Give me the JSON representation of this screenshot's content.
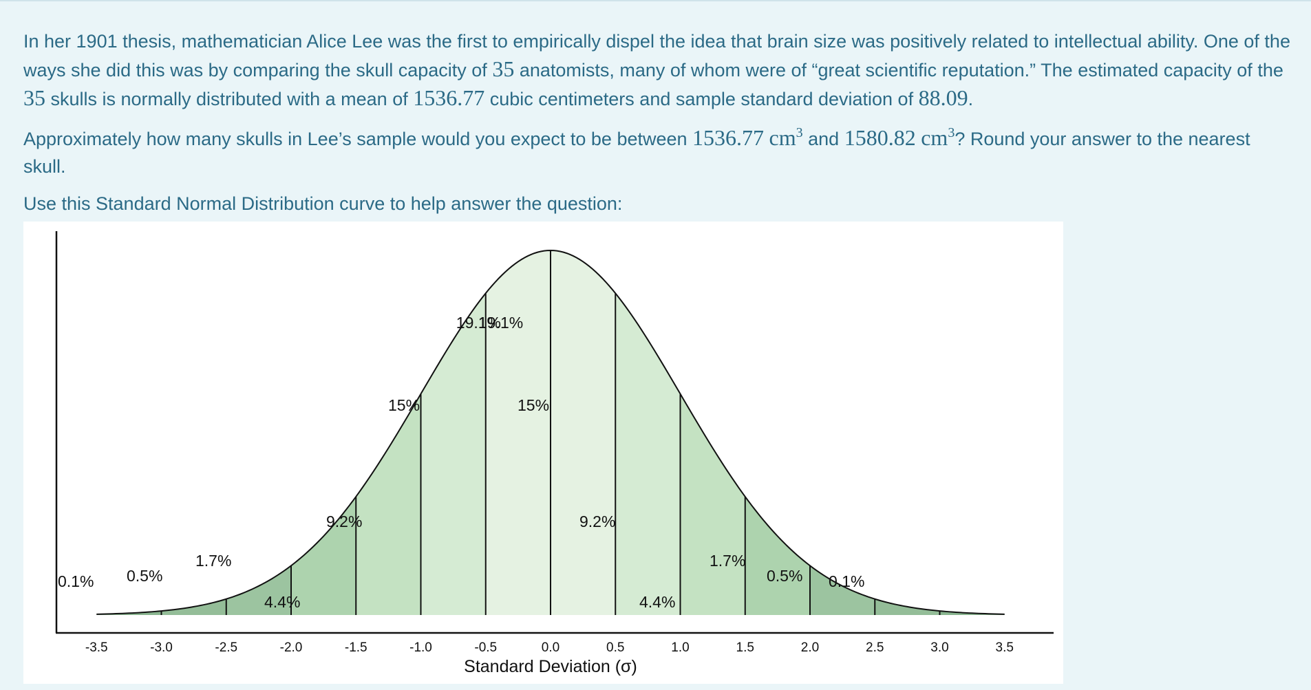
{
  "question": {
    "p1_a": "In her 1901 thesis, mathematician Alice Lee was the first to empirically dispel the idea that brain size was positively related to intellectual ability. One of the ways she did this was by comparing the skull capacity of ",
    "n1": "35",
    "p1_b": " anatomists, many of whom were of “great scientific reputation.” The estimated capacity of the ",
    "n2": "35",
    "p1_c": " skulls is normally distributed with a mean of ",
    "mean": "1536.77",
    "p1_d": " cubic centimeters and sample standard deviation of ",
    "sd": "88.09",
    "p1_e": ".",
    "p2_a": "Approximately how many skulls in Lee’s sample would you expect to be between ",
    "low": "1536.77",
    "unit": "cm",
    "exp": "3",
    "p2_b": " and ",
    "high": "1580.82",
    "p2_c": "? Round your answer to the nearest skull.",
    "p3": "Use this Standard Normal Distribution curve to help answer the question:"
  },
  "chart_data": {
    "type": "area",
    "title": "",
    "xlabel": "Standard Deviation (σ)",
    "ylabel": "",
    "xlim": [
      -3.5,
      3.5
    ],
    "ticks": [
      "-3.5",
      "-3.0",
      "-2.5",
      "-2.0",
      "-1.5",
      "-1.0",
      "-0.5",
      "0.0",
      "0.5",
      "1.0",
      "1.5",
      "2.0",
      "2.5",
      "3.0",
      "3.5"
    ],
    "boundaries": [
      -3.0,
      -2.5,
      -2.0,
      -1.5,
      -1.0,
      -0.5,
      0.0,
      0.5,
      1.0,
      1.5,
      2.0,
      2.5,
      3.0
    ],
    "regions": [
      {
        "from": -3.5,
        "to": -3.0,
        "label": "0.1%",
        "color": "#89b58f"
      },
      {
        "from": -3.0,
        "to": -2.5,
        "label": "0.5%",
        "color": "#94bd98"
      },
      {
        "from": -2.5,
        "to": -2.0,
        "label": "1.7%",
        "color": "#9cc4a0"
      },
      {
        "from": -2.0,
        "to": -1.5,
        "label": "4.4%",
        "color": "#add3ae"
      },
      {
        "from": -1.5,
        "to": -1.0,
        "label": "9.2%",
        "color": "#c4e2c2"
      },
      {
        "from": -1.0,
        "to": -0.5,
        "label": "15%",
        "color": "#d5ebd3"
      },
      {
        "from": -0.5,
        "to": 0.0,
        "label": "19.1%",
        "color": "#e5f2e2"
      },
      {
        "from": 0.0,
        "to": 0.5,
        "label": "19.1%",
        "color": "#e5f2e2"
      },
      {
        "from": 0.5,
        "to": 1.0,
        "label": "15%",
        "color": "#d5ebd3"
      },
      {
        "from": 1.0,
        "to": 1.5,
        "label": "9.2%",
        "color": "#c4e2c2"
      },
      {
        "from": 1.5,
        "to": 2.0,
        "label": "4.4%",
        "color": "#add3ae"
      },
      {
        "from": 2.0,
        "to": 2.5,
        "label": "1.7%",
        "color": "#9cc4a0"
      },
      {
        "from": 2.5,
        "to": 3.0,
        "label": "0.5%",
        "color": "#94bd98"
      },
      {
        "from": 3.0,
        "to": 3.5,
        "label": "0.1%",
        "color": "#89b58f"
      }
    ]
  }
}
